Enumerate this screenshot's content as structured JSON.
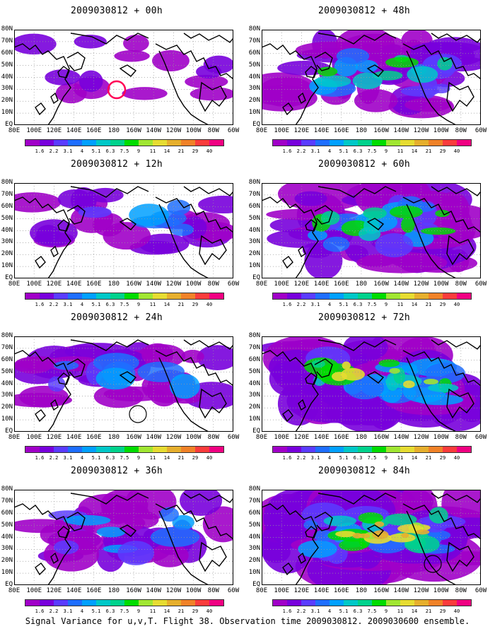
{
  "panels": [
    {
      "title": "2009030812 + 00h",
      "level": 1,
      "circle": [
        165,
        85
      ],
      "circle_color": "#ff0055"
    },
    {
      "title": "2009030812 + 48h",
      "level": 4,
      "circle": null
    },
    {
      "title": "2009030812 + 12h",
      "level": 2,
      "circle": null
    },
    {
      "title": "2009030812 + 60h",
      "level": 5,
      "circle": null
    },
    {
      "title": "2009030812 + 24h",
      "level": 3,
      "circle": [
        195,
        110
      ],
      "circle_color": "#000000"
    },
    {
      "title": "2009030812 + 72h",
      "level": 6,
      "circle": null
    },
    {
      "title": "2009030812 + 36h",
      "level": 3,
      "circle": null
    },
    {
      "title": "2009030812 + 84h",
      "level": 7,
      "circle": [
        262,
        105
      ],
      "circle_color": "#000000"
    }
  ],
  "lat_labels": [
    "80N",
    "70N",
    "60N",
    "50N",
    "40N",
    "30N",
    "20N",
    "10N",
    "EQ"
  ],
  "lon_labels": [
    "80E",
    "100E",
    "120E",
    "140E",
    "160E",
    "180",
    "160W",
    "140W",
    "120W",
    "100W",
    "80W",
    "60W"
  ],
  "colorbar": {
    "ticks": [
      "1.6",
      "2.2",
      "3.1",
      "4",
      "5.1",
      "6.3",
      "7.5",
      "9",
      "11",
      "14",
      "21",
      "29",
      "40"
    ],
    "colors": [
      "#a000c8",
      "#7800dc",
      "#5a3cff",
      "#1e6eff",
      "#00a0ff",
      "#00c8c8",
      "#00d28c",
      "#00dc00",
      "#a0e632",
      "#e6dc32",
      "#e6af2d",
      "#f08228",
      "#fa3c3c",
      "#f00082"
    ]
  },
  "caption": "Signal Variance for u,v,T. Flight 38. Observation time 2009030812. 2009030600 ensemble."
}
